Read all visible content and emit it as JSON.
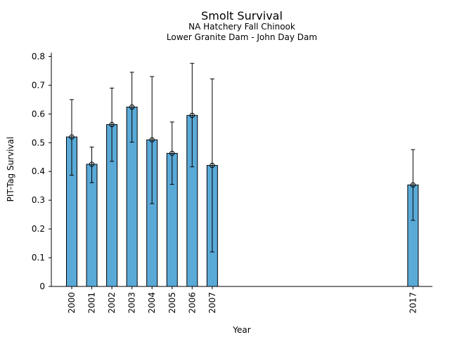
{
  "chart_data": {
    "type": "bar",
    "title": "Smolt Survival",
    "subtitles": [
      "NA Hatchery Fall Chinook",
      "Lower Granite Dam - John Day Dam"
    ],
    "xlabel": "Year",
    "ylabel": "PIT-Tag Survival",
    "ylim": [
      0,
      0.82
    ],
    "yticks": [
      "0",
      "0.1",
      "0.2",
      "0.3",
      "0.4",
      "0.5",
      "0.6",
      "0.7",
      "0.8"
    ],
    "x": [
      2000,
      2001,
      2002,
      2003,
      2004,
      2005,
      2006,
      2007,
      2017
    ],
    "xtick_labels": [
      "2000",
      "2001",
      "2002",
      "2003",
      "2004",
      "2005",
      "2006",
      "2007",
      "2017"
    ],
    "values": [
      0.52,
      0.425,
      0.563,
      0.624,
      0.51,
      0.463,
      0.595,
      0.421,
      0.353
    ],
    "ci_lower": [
      0.387,
      0.361,
      0.435,
      0.502,
      0.288,
      0.355,
      0.416,
      0.12,
      0.23
    ],
    "ci_upper": [
      0.65,
      0.485,
      0.69,
      0.745,
      0.73,
      0.572,
      0.776,
      0.722,
      0.476
    ],
    "grid": false,
    "bar_color": "#5aaad8",
    "edge_color": "#000000"
  }
}
